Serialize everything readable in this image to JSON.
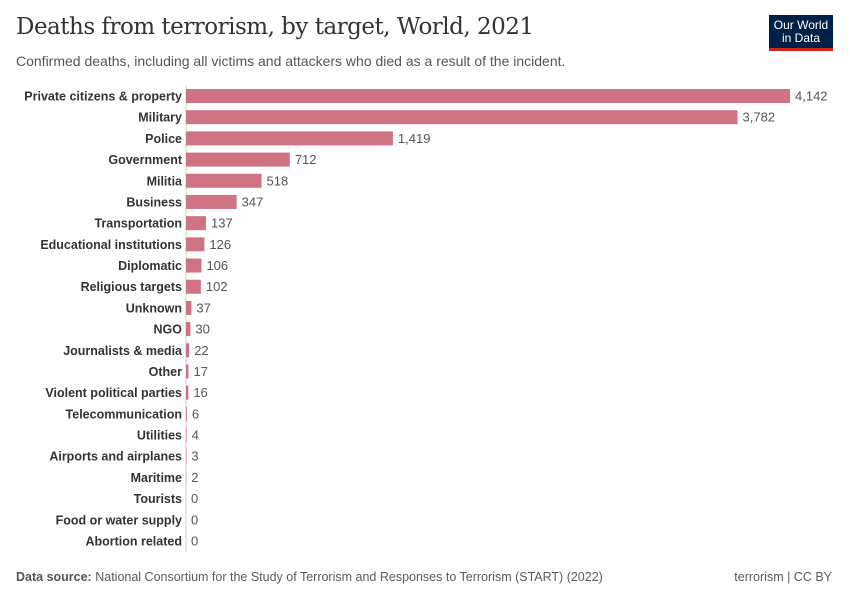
{
  "title": "Deaths from terrorism, by target, World, 2021",
  "subtitle": "Confirmed deaths, including all victims and attackers who died as a result of the incident.",
  "logo": {
    "line1": "Our World",
    "line2": "in Data"
  },
  "footer": {
    "source_label": "Data source:",
    "source_text": "National Consortium for the Study of Terrorism and Responses to Terrorism (START) (2022)",
    "right": "terrorism | CC BY"
  },
  "colors": {
    "bar": "#cf7283",
    "label": "#333333",
    "value": "#555555"
  },
  "chart_data": {
    "type": "bar",
    "orientation": "horizontal",
    "title": "Deaths from terrorism, by target, World, 2021",
    "categories": [
      "Private citizens & property",
      "Military",
      "Police",
      "Government",
      "Militia",
      "Business",
      "Transportation",
      "Educational institutions",
      "Diplomatic",
      "Religious targets",
      "Unknown",
      "NGO",
      "Journalists & media",
      "Other",
      "Violent political parties",
      "Telecommunication",
      "Utilities",
      "Airports and airplanes",
      "Maritime",
      "Tourists",
      "Food or water supply",
      "Abortion related"
    ],
    "values": [
      4142,
      3782,
      1419,
      712,
      518,
      347,
      137,
      126,
      106,
      102,
      37,
      30,
      22,
      17,
      16,
      6,
      4,
      3,
      2,
      0,
      0,
      0
    ],
    "value_labels": [
      "4,142",
      "3,782",
      "1,419",
      "712",
      "518",
      "347",
      "137",
      "126",
      "106",
      "102",
      "37",
      "30",
      "22",
      "17",
      "16",
      "6",
      "4",
      "3",
      "2",
      "0",
      "0",
      "0"
    ],
    "xlim": [
      0,
      4142
    ],
    "grid": false
  }
}
